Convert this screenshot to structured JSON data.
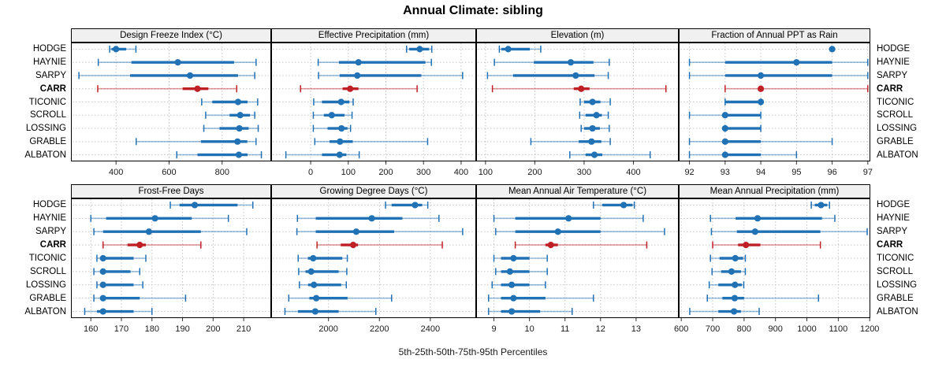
{
  "title": "Annual Climate: sibling",
  "caption": "5th-25th-50th-75th-95th Percentiles",
  "percentiles": [
    "5th",
    "25th",
    "50th",
    "75th",
    "95th"
  ],
  "colors": {
    "series_blue": "#2171b5",
    "highlight_red": "#bf2026",
    "grid": "#c4c4c4",
    "strip_bg": "#f0f0f0",
    "panel_border": "#000000",
    "tick": "#333333"
  },
  "stations": [
    {
      "name": "HODGE",
      "highlight": false
    },
    {
      "name": "HAYNIE",
      "highlight": false
    },
    {
      "name": "SARPY",
      "highlight": false
    },
    {
      "name": "CARR",
      "highlight": true
    },
    {
      "name": "TICONIC",
      "highlight": false
    },
    {
      "name": "SCROLL",
      "highlight": false
    },
    {
      "name": "LOSSING",
      "highlight": false
    },
    {
      "name": "GRABLE",
      "highlight": false
    },
    {
      "name": "ALBATON",
      "highlight": false
    }
  ],
  "chart_data": [
    {
      "type": "dot-whisker",
      "slug": "design-freeze-index",
      "title": "Design Freeze Index (°C)",
      "grid_row": 0,
      "grid_col": 0,
      "xlim": [
        230,
        985
      ],
      "ticks": [
        400,
        600,
        800
      ],
      "values": {
        "HODGE": [
          376,
          383,
          400,
          438,
          475
        ],
        "HAYNIE": [
          333,
          458,
          633,
          845,
          928
        ],
        "SARPY": [
          260,
          453,
          679,
          860,
          923
        ],
        "CARR": [
          331,
          651,
          707,
          748,
          855
        ],
        "TICONIC": [
          723,
          763,
          860,
          896,
          934
        ],
        "SCROLL": [
          738,
          828,
          868,
          905,
          923
        ],
        "LOSSING": [
          731,
          790,
          865,
          900,
          936
        ],
        "GRABLE": [
          476,
          720,
          858,
          895,
          928
        ],
        "ALBATON": [
          629,
          707,
          863,
          896,
          948
        ]
      }
    },
    {
      "type": "dot-whisker",
      "slug": "effective-precipitation",
      "title": "Effective Precipitation (mm)",
      "grid_row": 0,
      "grid_col": 1,
      "xlim": [
        -105,
        440
      ],
      "ticks": [
        0,
        100,
        200,
        300,
        400
      ],
      "values": {
        "HODGE": [
          255,
          262,
          290,
          315,
          322
        ],
        "HAYNIE": [
          20,
          75,
          127,
          305,
          321
        ],
        "SARPY": [
          21,
          77,
          124,
          294,
          404
        ],
        "CARR": [
          -27,
          85,
          105,
          127,
          283
        ],
        "TICONIC": [
          8,
          30,
          81,
          103,
          113
        ],
        "SCROLL": [
          7,
          35,
          56,
          90,
          110
        ],
        "LOSSING": [
          7,
          45,
          82,
          98,
          106
        ],
        "GRABLE": [
          11,
          50,
          78,
          112,
          311
        ],
        "ALBATON": [
          -66,
          30,
          77,
          95,
          129
        ]
      }
    },
    {
      "type": "dot-whisker",
      "slug": "elevation",
      "title": "Elevation (m)",
      "grid_row": 0,
      "grid_col": 2,
      "xlim": [
        81,
        492
      ],
      "ticks": [
        100,
        200,
        300,
        400
      ],
      "values": {
        "HODGE": [
          128,
          132,
          146,
          190,
          212
        ],
        "HAYNIE": [
          118,
          198,
          273,
          319,
          351
        ],
        "SARPY": [
          104,
          156,
          283,
          321,
          349
        ],
        "CARR": [
          114,
          279,
          294,
          311,
          466
        ],
        "TICONIC": [
          292,
          300,
          317,
          333,
          353
        ],
        "SCROLL": [
          291,
          303,
          325,
          336,
          349
        ],
        "LOSSING": [
          294,
          300,
          317,
          332,
          351
        ],
        "GRABLE": [
          192,
          289,
          315,
          335,
          353
        ],
        "ALBATON": [
          271,
          303,
          321,
          337,
          434
        ]
      }
    },
    {
      "type": "dot-whisker",
      "slug": "fraction-ppt-rain",
      "title": "Fraction of Annual PPT as Rain",
      "grid_row": 0,
      "grid_col": 3,
      "xlim": [
        91.7,
        97.07
      ],
      "ticks": [
        92,
        93,
        94,
        95,
        96,
        97
      ],
      "values": {
        "HODGE": [
          96,
          96,
          96,
          96,
          96
        ],
        "HAYNIE": [
          92,
          93,
          95,
          96,
          97
        ],
        "SARPY": [
          92,
          93,
          94,
          96,
          97
        ],
        "CARR": [
          93,
          94,
          94,
          94,
          97
        ],
        "TICONIC": [
          93,
          93,
          94,
          94,
          94
        ],
        "SCROLL": [
          92,
          93,
          93,
          94,
          94
        ],
        "LOSSING": [
          93,
          93,
          93,
          94,
          94
        ],
        "GRABLE": [
          92,
          93,
          93,
          94,
          96
        ],
        "ALBATON": [
          92,
          93,
          93,
          94,
          95
        ]
      }
    },
    {
      "type": "dot-whisker",
      "slug": "frost-free-days",
      "title": "Frost-Free Days",
      "grid_row": 1,
      "grid_col": 0,
      "xlim": [
        153.5,
        219
      ],
      "ticks": [
        160,
        170,
        180,
        190,
        200,
        210
      ],
      "values": {
        "HODGE": [
          186,
          189,
          194,
          208,
          213
        ],
        "HAYNIE": [
          160,
          165,
          181,
          193,
          205
        ],
        "SARPY": [
          161,
          164,
          179,
          196,
          211
        ],
        "CARR": [
          164,
          172,
          176,
          178,
          196
        ],
        "TICONIC": [
          162,
          163,
          164,
          174,
          178
        ],
        "SCROLL": [
          161,
          163,
          164,
          173,
          176
        ],
        "LOSSING": [
          162,
          163,
          164,
          174,
          177
        ],
        "GRABLE": [
          161,
          163,
          164,
          176,
          191
        ],
        "ALBATON": [
          158,
          162,
          164,
          174,
          180
        ]
      }
    },
    {
      "type": "dot-whisker",
      "slug": "growing-degree-days",
      "title": "Growing Degree Days (°C)",
      "grid_row": 1,
      "grid_col": 1,
      "xlim": [
        1775,
        2580
      ],
      "ticks": [
        2000,
        2200,
        2400
      ],
      "values": {
        "HODGE": [
          2224,
          2248,
          2340,
          2368,
          2390
        ],
        "HAYNIE": [
          1878,
          1950,
          2170,
          2290,
          2434
        ],
        "SARPY": [
          1876,
          1950,
          2109,
          2258,
          2527
        ],
        "CARR": [
          1955,
          2048,
          2097,
          2116,
          2447
        ],
        "TICONIC": [
          1881,
          1919,
          1940,
          2054,
          2074
        ],
        "SCROLL": [
          1883,
          1910,
          1932,
          2040,
          2072
        ],
        "LOSSING": [
          1886,
          1920,
          1943,
          2050,
          2070
        ],
        "GRABLE": [
          1844,
          1925,
          1952,
          2075,
          2248
        ],
        "ALBATON": [
          1829,
          1880,
          1948,
          2040,
          2186
        ]
      }
    },
    {
      "type": "dot-whisker",
      "slug": "mean-annual-air-temperature",
      "title": "Mean Annual Air Temperature (°C)",
      "grid_row": 1,
      "grid_col": 2,
      "xlim": [
        8.5,
        14.2
      ],
      "ticks": [
        9,
        10,
        11,
        12,
        13
      ],
      "values": {
        "HODGE": [
          11.8,
          12.05,
          12.65,
          12.9,
          12.95
        ],
        "HAYNIE": [
          9.0,
          9.6,
          11.1,
          12.0,
          13.2
        ],
        "SARPY": [
          9.05,
          9.6,
          10.8,
          12.0,
          13.8
        ],
        "CARR": [
          9.6,
          10.45,
          10.6,
          10.8,
          13.3
        ],
        "TICONIC": [
          9.0,
          9.2,
          9.55,
          10.0,
          10.5
        ],
        "SCROLL": [
          9.05,
          9.2,
          9.45,
          10.0,
          10.5
        ],
        "LOSSING": [
          8.95,
          9.2,
          9.5,
          10.0,
          10.45
        ],
        "GRABLE": [
          8.85,
          9.2,
          9.55,
          10.45,
          11.8
        ],
        "ALBATON": [
          8.85,
          9.2,
          9.5,
          10.3,
          11.2
        ]
      }
    },
    {
      "type": "dot-whisker",
      "slug": "mean-annual-precipitation",
      "title": "Mean Annual Precipitation (mm)",
      "grid_row": 1,
      "grid_col": 3,
      "xlim": [
        592,
        1202
      ],
      "ticks": [
        600,
        700,
        800,
        900,
        1000,
        1100,
        1200
      ],
      "values": {
        "HODGE": [
          1014,
          1025,
          1045,
          1065,
          1072
        ],
        "HAYNIE": [
          693,
          773,
          843,
          1048,
          1089
        ],
        "SARPY": [
          696,
          777,
          835,
          1043,
          1192
        ],
        "CARR": [
          700,
          781,
          806,
          852,
          1043
        ],
        "TICONIC": [
          693,
          722,
          772,
          797,
          804
        ],
        "SCROLL": [
          698,
          727,
          760,
          790,
          804
        ],
        "LOSSING": [
          689,
          718,
          771,
          793,
          799
        ],
        "GRABLE": [
          683,
          731,
          770,
          800,
          1037
        ],
        "ALBATON": [
          627,
          718,
          768,
          790,
          848
        ]
      }
    }
  ]
}
